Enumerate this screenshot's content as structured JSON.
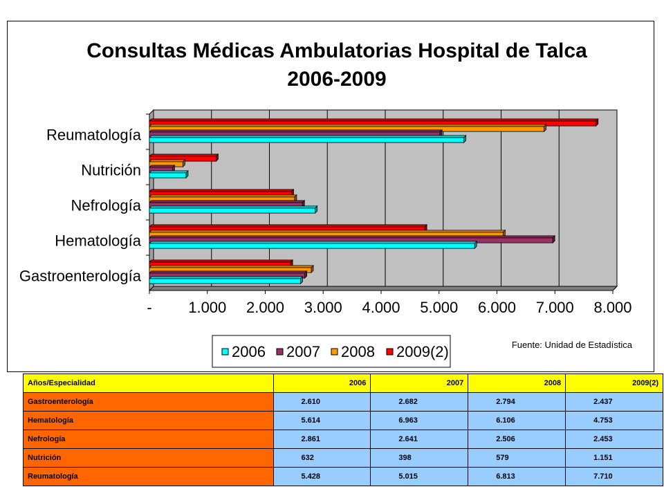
{
  "chart_data": {
    "type": "bar",
    "orientation": "horizontal",
    "title": "Consultas Médicas Ambulatorias Hospital de Talca",
    "subtitle": "2006-2009",
    "categories": [
      "Gastroenterología",
      "Hematología",
      "Nefrología",
      "Nutrición",
      "Reumatología"
    ],
    "series": [
      {
        "name": "2006",
        "color": "#00ffff",
        "values": [
          2610,
          5614,
          2861,
          632,
          5428
        ]
      },
      {
        "name": "2007",
        "color": "#993366",
        "values": [
          2682,
          6963,
          2641,
          398,
          5015
        ]
      },
      {
        "name": "2008",
        "color": "#ff9900",
        "values": [
          2794,
          6106,
          2506,
          579,
          6813
        ]
      },
      {
        "name": "2009(2)",
        "color": "#ff0000",
        "values": [
          2437,
          4753,
          2453,
          1151,
          7710
        ]
      }
    ],
    "xlim": [
      0,
      8000
    ],
    "x_ticks": [
      "-",
      "1.000",
      "2.000",
      "3.000",
      "4.000",
      "5.000",
      "6.000",
      "7.000",
      "8.000"
    ],
    "x_tick_values": [
      0,
      1000,
      2000,
      3000,
      4000,
      5000,
      6000,
      7000,
      8000
    ],
    "grid": true,
    "plot_background": "#c0c0c0",
    "legend_position": "bottom",
    "source_note": "Fuente: Unidad de Estadística"
  },
  "table": {
    "header": [
      "Años/Especialidad",
      "2006",
      "2007",
      "2008",
      "2009(2)"
    ],
    "rows": [
      [
        "Gastroenterología",
        "2.610",
        "2.682",
        "2.794",
        "2.437"
      ],
      [
        "Hematología",
        "5.614",
        "6.963",
        "6.106",
        "4.753"
      ],
      [
        "Nefrología",
        "2.861",
        "2.641",
        "2.506",
        "2.453"
      ],
      [
        "Nutrición",
        "632",
        "398",
        "579",
        "1.151"
      ],
      [
        "Reumatología",
        "5.428",
        "5.015",
        "6.813",
        "7.710"
      ]
    ]
  }
}
